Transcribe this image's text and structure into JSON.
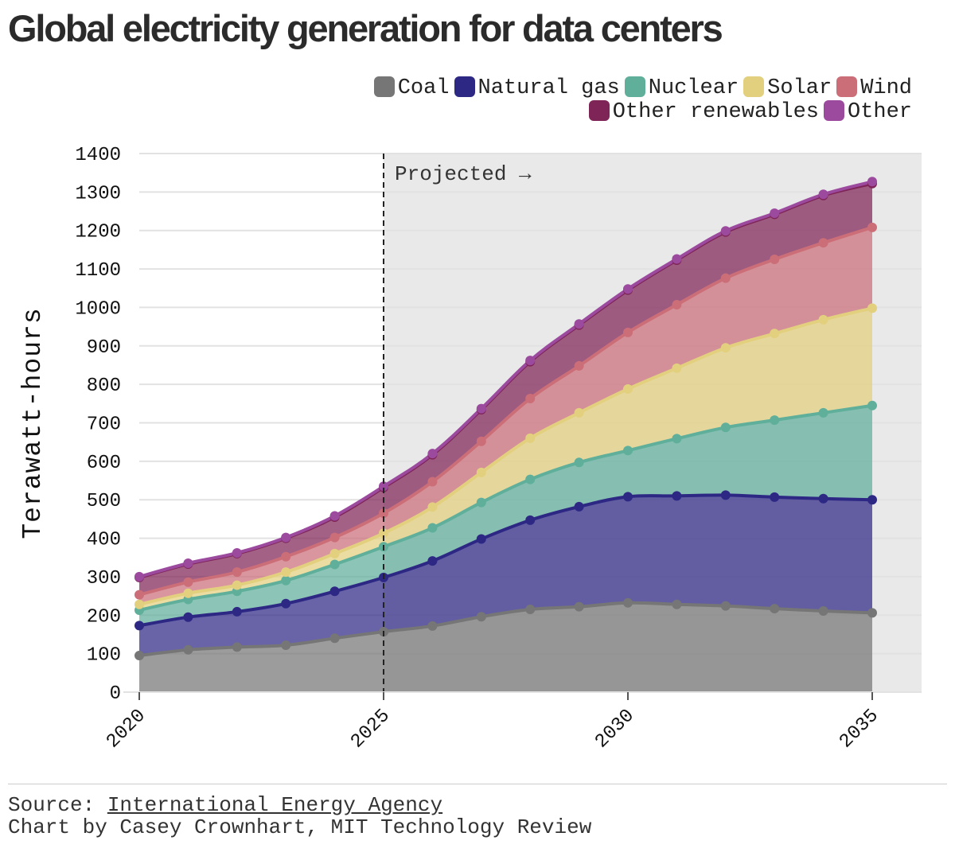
{
  "title": "Global electricity generation for data centers",
  "footer": {
    "source_prefix": "Source: ",
    "source_link": "International Energy Agency",
    "credit": "Chart by Casey Crownhart, MIT Technology Review"
  },
  "chart_data": {
    "type": "area",
    "stacked": true,
    "title": "Global electricity generation for data centers",
    "ylabel": "Terawatt-hours",
    "xlabel": "",
    "x": [
      2020,
      2021,
      2022,
      2023,
      2024,
      2025,
      2026,
      2027,
      2028,
      2029,
      2030,
      2031,
      2032,
      2033,
      2034,
      2035
    ],
    "xticks": [
      "2020",
      "2025",
      "2030",
      "2035"
    ],
    "ylim": [
      0,
      1400
    ],
    "yticks": [
      0,
      100,
      200,
      300,
      400,
      500,
      600,
      700,
      800,
      900,
      1000,
      1100,
      1200,
      1300,
      1400
    ],
    "annotation": "Projected →",
    "projection_start": 2025,
    "legend_position": "top-right",
    "series": [
      {
        "name": "Coal",
        "color": "#767676",
        "values": [
          95,
          110,
          117,
          122,
          140,
          157,
          172,
          196,
          215,
          222,
          232,
          228,
          224,
          217,
          211,
          206
        ]
      },
      {
        "name": "Natural gas",
        "color": "#2e2885",
        "values": [
          78,
          85,
          92,
          108,
          122,
          141,
          169,
          202,
          232,
          260,
          276,
          282,
          288,
          290,
          292,
          294
        ]
      },
      {
        "name": "Nuclear",
        "color": "#5faf9b",
        "values": [
          40,
          46,
          53,
          60,
          70,
          80,
          86,
          95,
          106,
          115,
          120,
          149,
          176,
          200,
          223,
          245
        ]
      },
      {
        "name": "Solar",
        "color": "#e3d07e",
        "values": [
          15,
          16,
          16,
          22,
          28,
          35,
          54,
          78,
          107,
          129,
          160,
          183,
          207,
          225,
          242,
          253
        ]
      },
      {
        "name": "Wind",
        "color": "#cc6e78",
        "values": [
          25,
          29,
          34,
          40,
          42,
          52,
          66,
          81,
          103,
          122,
          147,
          165,
          181,
          193,
          200,
          210
        ]
      },
      {
        "name": "Other renewables",
        "color": "#7f2457",
        "values": [
          45,
          47,
          48,
          48,
          53,
          67,
          70,
          82,
          96,
          106,
          110,
          116,
          120,
          117,
          123,
          114
        ]
      },
      {
        "name": "Other",
        "color": "#9b4a9e",
        "values": [
          2,
          2,
          2,
          2,
          3,
          3,
          3,
          3,
          3,
          3,
          3,
          3,
          3,
          3,
          3,
          5
        ]
      }
    ]
  }
}
